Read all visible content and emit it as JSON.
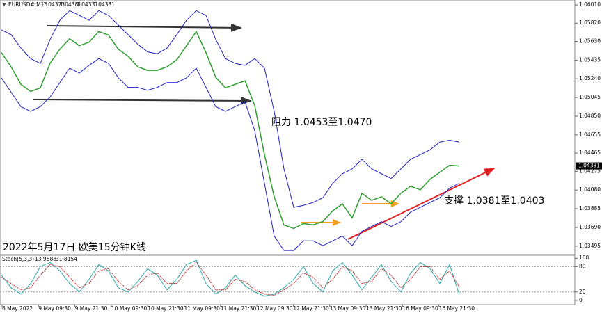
{
  "chart_data": [
    {
      "type": "line",
      "title": "EURUSD#,M15",
      "last_bar": [
        1.04373,
        1.04381,
        1.04331,
        1.04331
      ],
      "x_labels": [
        "6 May 2022",
        "9 May 09:30",
        "9 May 21:30",
        "10 May 09:30",
        "10 May 21:30",
        "11 May 09:30",
        "11 May 21:30",
        "12 May 09:30",
        "12 May 21:30",
        "13 May 09:30",
        "13 May 21:30",
        "16 May 09:30",
        "16 May 21:30"
      ],
      "series": [
        {
          "name": "Close",
          "color": "#2e9e2e",
          "values": [
            1.05512,
            1.05365,
            1.05182,
            1.05108,
            1.05145,
            1.05402,
            1.05548,
            1.05658,
            1.05585,
            1.05622,
            1.05732,
            1.05695,
            1.05548,
            1.05475,
            1.05365,
            1.05328,
            1.05328,
            1.05365,
            1.05438,
            1.05585,
            1.05732,
            1.05512,
            1.05255,
            1.05145,
            1.05182,
            1.05218,
            1.04962,
            1.04449,
            1.04009,
            1.03716,
            1.03679,
            1.0373,
            1.03716,
            1.03752,
            1.03862,
            1.03936,
            1.03789,
            1.04046,
            1.03972,
            1.04009,
            1.03936,
            1.04046,
            1.04119,
            1.04082,
            1.04192,
            1.04265,
            1.04339,
            1.04331
          ]
        },
        {
          "name": "Upper",
          "color": "#1f1fbf",
          "values": [
            1.0575,
            1.057,
            1.0556,
            1.0545,
            1.054,
            1.0565,
            1.0585,
            1.0595,
            1.059,
            1.0585,
            1.0595,
            1.059,
            1.058,
            1.057,
            1.056,
            1.0552,
            1.055,
            1.0556,
            1.057,
            1.0585,
            1.0595,
            1.059,
            1.0565,
            1.0545,
            1.054,
            1.0538,
            1.0545,
            1.0535,
            1.049,
            1.043,
            1.039,
            1.0392,
            1.0395,
            1.04,
            1.0415,
            1.0425,
            1.043,
            1.044,
            1.043,
            1.0425,
            1.042,
            1.043,
            1.044,
            1.0445,
            1.045,
            1.0458,
            1.046,
            1.0458
          ]
        },
        {
          "name": "Lower",
          "color": "#1f1fbf",
          "values": [
            1.0525,
            1.051,
            1.0495,
            1.049,
            1.0495,
            1.0505,
            1.052,
            1.0535,
            1.053,
            1.0538,
            1.0545,
            1.054,
            1.0525,
            1.0515,
            1.0515,
            1.0512,
            1.0515,
            1.052,
            1.052,
            1.0525,
            1.0535,
            1.0515,
            1.0495,
            1.049,
            1.0495,
            1.05,
            1.047,
            1.0415,
            1.036,
            1.0345,
            1.0345,
            1.0355,
            1.0355,
            1.035,
            1.0355,
            1.036,
            1.035,
            1.0365,
            1.037,
            1.0375,
            1.037,
            1.0375,
            1.0385,
            1.039,
            1.0395,
            1.04,
            1.041,
            1.0415
          ]
        }
      ],
      "ylim": [
        1.03407,
        1.06061
      ],
      "yticks": [
        {
          "value": 1.0601,
          "label": "1.06010"
        },
        {
          "value": 1.0582,
          "label": "1.05820"
        },
        {
          "value": 1.0563,
          "label": "1.05630"
        },
        1.05435,
        {
          "value": 1.0524,
          "label": "1.05240"
        },
        1.05045,
        {
          "value": 1.0485,
          "label": "1.04850"
        },
        1.04655,
        1.04465,
        1.04275,
        {
          "value": 1.0408,
          "label": "1.04080"
        },
        1.03885,
        {
          "value": 1.0369,
          "label": "1.03690"
        },
        1.03495
      ],
      "annotations": [
        "阻力 1.0453至1.0470",
        "支撑 1.0381至1.0403",
        "2022年5月17日 欧美15分钟K线"
      ]
    },
    {
      "type": "line",
      "title": "Stoch(5,3,3)",
      "series": [
        {
          "name": "Main",
          "color": "#2aa6a6",
          "values": [
            60,
            30,
            15,
            40,
            80,
            90,
            70,
            40,
            20,
            50,
            85,
            70,
            30,
            20,
            45,
            75,
            60,
            25,
            50,
            85,
            95,
            40,
            15,
            30,
            60,
            35,
            20,
            10,
            15,
            30,
            50,
            80,
            40,
            20,
            70,
            90,
            60,
            25,
            55,
            85,
            45,
            20,
            65,
            90,
            75,
            40,
            85,
            13.9588
          ]
        },
        {
          "name": "Signal",
          "color": "#c03030",
          "values": [
            55,
            40,
            25,
            30,
            60,
            85,
            80,
            55,
            30,
            40,
            70,
            75,
            45,
            25,
            35,
            60,
            65,
            40,
            40,
            70,
            90,
            60,
            25,
            25,
            50,
            45,
            25,
            15,
            12,
            25,
            40,
            65,
            55,
            30,
            50,
            80,
            70,
            40,
            45,
            75,
            60,
            30,
            50,
            80,
            80,
            50,
            70,
            31.8154
          ]
        }
      ],
      "ylim": [
        -10,
        107
      ],
      "yticks": [
        100,
        80,
        20,
        0
      ]
    }
  ]
}
